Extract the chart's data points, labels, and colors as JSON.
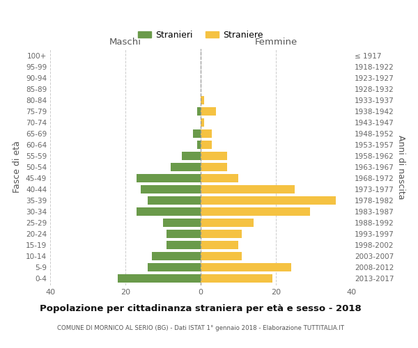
{
  "age_groups": [
    "0-4",
    "5-9",
    "10-14",
    "15-19",
    "20-24",
    "25-29",
    "30-34",
    "35-39",
    "40-44",
    "45-49",
    "50-54",
    "55-59",
    "60-64",
    "65-69",
    "70-74",
    "75-79",
    "80-84",
    "85-89",
    "90-94",
    "95-99",
    "100+"
  ],
  "birth_years": [
    "2013-2017",
    "2008-2012",
    "2003-2007",
    "1998-2002",
    "1993-1997",
    "1988-1992",
    "1983-1987",
    "1978-1982",
    "1973-1977",
    "1968-1972",
    "1963-1967",
    "1958-1962",
    "1953-1957",
    "1948-1952",
    "1943-1947",
    "1938-1942",
    "1933-1937",
    "1928-1932",
    "1923-1927",
    "1918-1922",
    "≤ 1917"
  ],
  "maschi": [
    22,
    14,
    13,
    9,
    9,
    10,
    17,
    14,
    16,
    17,
    8,
    5,
    1,
    2,
    0,
    1,
    0,
    0,
    0,
    0,
    0
  ],
  "femmine": [
    19,
    24,
    11,
    10,
    11,
    14,
    29,
    36,
    25,
    10,
    7,
    7,
    3,
    3,
    1,
    4,
    1,
    0,
    0,
    0,
    0
  ],
  "color_maschi": "#6a9a4a",
  "color_femmine": "#f5c242",
  "title": "Popolazione per cittadinanza straniera per età e sesso - 2018",
  "subtitle": "COMUNE DI MORNICO AL SERIO (BG) - Dati ISTAT 1° gennaio 2018 - Elaborazione TUTTITALIA.IT",
  "xlabel_maschi": "Maschi",
  "xlabel_femmine": "Femmine",
  "ylabel_left": "Fasce di età",
  "ylabel_right": "Anni di nascita",
  "legend_maschi": "Stranieri",
  "legend_femmine": "Straniere",
  "xlim": 40,
  "background_color": "#ffffff",
  "grid_color": "#cccccc"
}
